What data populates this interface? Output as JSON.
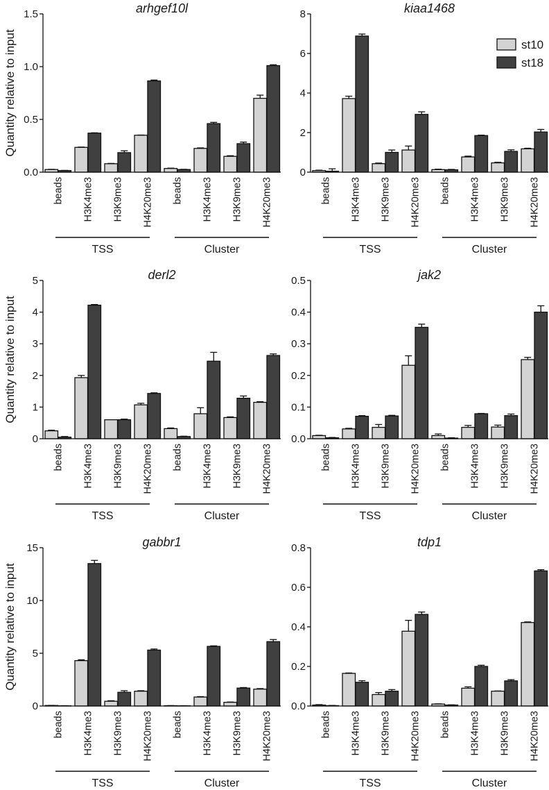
{
  "chart_data": [
    {
      "type": "bar",
      "title": "arhgef10l",
      "ylabel": "Quantity relative to input",
      "ylim": [
        0,
        1.5
      ],
      "yticks": [
        "0.0",
        "0.5",
        "1.0",
        "1.5"
      ],
      "categories": [
        "beads",
        "H3K4me3",
        "H3K9me3",
        "H4K20me3",
        "beads",
        "H3K4me3",
        "H3K9me3",
        "H4K20me3"
      ],
      "groups": [
        "TSS",
        "Cluster"
      ],
      "series": [
        {
          "name": "st10",
          "values": [
            0.025,
            0.235,
            0.08,
            0.35,
            0.035,
            0.225,
            0.15,
            0.7
          ],
          "errors": [
            0.002,
            0.003,
            0.003,
            0.002,
            0.003,
            0.005,
            0.006,
            0.03
          ]
        },
        {
          "name": "st18",
          "values": [
            0.015,
            0.37,
            0.185,
            0.865,
            0.025,
            0.46,
            0.27,
            1.01
          ],
          "errors": [
            0.002,
            0.003,
            0.018,
            0.008,
            0.002,
            0.012,
            0.015,
            0.008
          ]
        }
      ]
    },
    {
      "type": "bar",
      "title": "kiaa1468",
      "ylabel": "",
      "ylim": [
        0,
        8
      ],
      "yticks": [
        "0",
        "2",
        "4",
        "6",
        "8"
      ],
      "categories": [
        "beads",
        "H3K4me3",
        "H3K9me3",
        "H4K20me3",
        "beads",
        "H3K4me3",
        "H3K9me3",
        "H4K20me3"
      ],
      "groups": [
        "TSS",
        "Cluster"
      ],
      "legend": {
        "placement": "top-right",
        "entries": [
          "st10",
          "st18"
        ]
      },
      "series": [
        {
          "name": "st10",
          "values": [
            0.08,
            3.72,
            0.43,
            1.12,
            0.13,
            0.77,
            0.47,
            1.18
          ],
          "errors": [
            0.02,
            0.12,
            0.03,
            0.2,
            0.02,
            0.04,
            0.03,
            0.03
          ]
        },
        {
          "name": "st18",
          "values": [
            0.05,
            6.88,
            1.0,
            2.92,
            0.12,
            1.85,
            1.05,
            2.03
          ],
          "errors": [
            0.12,
            0.1,
            0.12,
            0.13,
            0.02,
            0.02,
            0.08,
            0.13
          ]
        }
      ]
    },
    {
      "type": "bar",
      "title": "derl2",
      "ylabel": "Quantity relative to input",
      "ylim": [
        0,
        5
      ],
      "yticks": [
        "0",
        "1",
        "2",
        "3",
        "4",
        "5"
      ],
      "categories": [
        "beads",
        "H3K4me3",
        "H3K9me3",
        "H4K20me3",
        "beads",
        "H3K4me3",
        "H3K9me3",
        "H4K20me3"
      ],
      "groups": [
        "TSS",
        "Cluster"
      ],
      "series": [
        {
          "name": "st10",
          "values": [
            0.25,
            1.93,
            0.6,
            1.07,
            0.32,
            0.79,
            0.67,
            1.15
          ],
          "errors": [
            0.02,
            0.07,
            0.0,
            0.05,
            0.02,
            0.19,
            0.02,
            0.02
          ]
        },
        {
          "name": "st18",
          "values": [
            0.05,
            4.22,
            0.6,
            1.43,
            0.07,
            2.45,
            1.28,
            2.63
          ],
          "errors": [
            0.02,
            0.02,
            0.02,
            0.02,
            0.01,
            0.28,
            0.07,
            0.05
          ]
        }
      ]
    },
    {
      "type": "bar",
      "title": "jak2",
      "ylabel": "",
      "ylim": [
        0,
        0.5
      ],
      "yticks": [
        "0.0",
        "0.1",
        "0.2",
        "0.3",
        "0.4",
        "0.5"
      ],
      "categories": [
        "beads",
        "H3K4me3",
        "H3K9me3",
        "H4K20me3",
        "beads",
        "H3K4me3",
        "H3K9me3",
        "H4K20me3"
      ],
      "groups": [
        "TSS",
        "Cluster"
      ],
      "series": [
        {
          "name": "st10",
          "values": [
            0.01,
            0.031,
            0.036,
            0.232,
            0.01,
            0.036,
            0.037,
            0.25
          ],
          "errors": [
            0.001,
            0.002,
            0.009,
            0.03,
            0.005,
            0.006,
            0.006,
            0.007
          ]
        },
        {
          "name": "st18",
          "values": [
            0.003,
            0.071,
            0.072,
            0.352,
            0.002,
            0.079,
            0.073,
            0.4
          ],
          "errors": [
            0.001,
            0.002,
            0.002,
            0.01,
            0.001,
            0.001,
            0.005,
            0.02
          ]
        }
      ]
    },
    {
      "type": "bar",
      "title": "gabbr1",
      "ylabel": "Quantity relative to input",
      "ylim": [
        0,
        15
      ],
      "yticks": [
        "0",
        "5",
        "10",
        "15"
      ],
      "categories": [
        "beads",
        "H3K4me3",
        "H3K9me3",
        "H4K20me3",
        "beads",
        "H3K4me3",
        "H3K9me3",
        "H4K20me3"
      ],
      "groups": [
        "TSS",
        "Cluster"
      ],
      "series": [
        {
          "name": "st10",
          "values": [
            0.05,
            4.3,
            0.45,
            1.4,
            0.03,
            0.85,
            0.35,
            1.6
          ],
          "errors": [
            0.01,
            0.08,
            0.05,
            0.05,
            0.01,
            0.04,
            0.03,
            0.05
          ]
        },
        {
          "name": "st18",
          "values": [
            0.02,
            13.5,
            1.3,
            5.3,
            0.02,
            5.65,
            1.7,
            6.1
          ],
          "errors": [
            0.01,
            0.3,
            0.15,
            0.1,
            0.01,
            0.05,
            0.05,
            0.2
          ]
        }
      ]
    },
    {
      "type": "bar",
      "title": "tdp1",
      "ylabel": "",
      "ylim": [
        0,
        0.8
      ],
      "yticks": [
        "0.0",
        "0.2",
        "0.4",
        "0.6",
        "0.8"
      ],
      "categories": [
        "beads",
        "H3K4me3",
        "H3K9me3",
        "H4K20me3",
        "beads",
        "H3K4me3",
        "H3K9me3",
        "H4K20me3"
      ],
      "groups": [
        "TSS",
        "Cluster"
      ],
      "series": [
        {
          "name": "st10",
          "values": [
            0.005,
            0.165,
            0.058,
            0.378,
            0.01,
            0.09,
            0.075,
            0.422
          ],
          "errors": [
            0.002,
            0.002,
            0.01,
            0.055,
            0.001,
            0.007,
            0.001,
            0.003
          ]
        },
        {
          "name": "st18",
          "values": [
            0.002,
            0.12,
            0.075,
            0.463,
            0.005,
            0.2,
            0.127,
            0.683
          ],
          "errors": [
            0.001,
            0.008,
            0.008,
            0.012,
            0.001,
            0.006,
            0.006,
            0.006
          ]
        }
      ]
    }
  ],
  "colors": {
    "st10": "#d3d3d3",
    "st18": "#404040",
    "outline": "#111111"
  }
}
